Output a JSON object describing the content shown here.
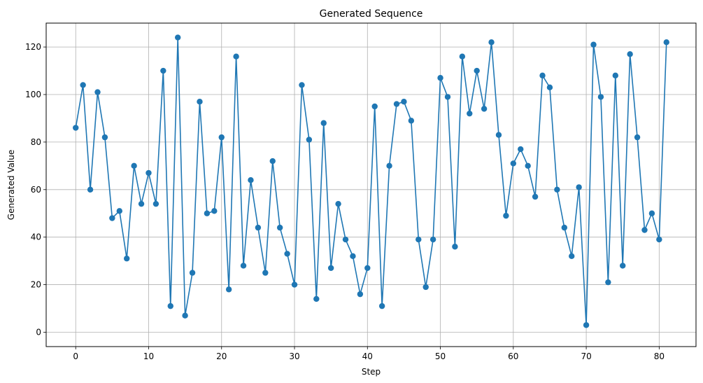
{
  "chart_data": {
    "type": "line",
    "title": "Generated Sequence",
    "xlabel": "Step",
    "ylabel": "Generated Value",
    "xlim": [
      -4.05,
      85.05
    ],
    "ylim": [
      -6.05,
      130.05
    ],
    "xticks": [
      0,
      10,
      20,
      30,
      40,
      50,
      60,
      70,
      80
    ],
    "yticks": [
      0,
      20,
      40,
      60,
      80,
      100,
      120
    ],
    "grid": true,
    "marker": "circle",
    "color": "#1f77b4",
    "series": [
      {
        "x": [
          0,
          1,
          2,
          3,
          4,
          5,
          6,
          7,
          8,
          9,
          10,
          11,
          12,
          13,
          14,
          15,
          16,
          17,
          18,
          19,
          20,
          21,
          22,
          23,
          24,
          25,
          26,
          27,
          28,
          29,
          30,
          31,
          32,
          33,
          34,
          35,
          36,
          37,
          38,
          39,
          40,
          41,
          42,
          43,
          44,
          45,
          46,
          47,
          48,
          49,
          50,
          51,
          52,
          53,
          54,
          55,
          56,
          57,
          58,
          59,
          60,
          61,
          62,
          63,
          64,
          65,
          66,
          67,
          68,
          69,
          70,
          71,
          72,
          73,
          74,
          75,
          76,
          77,
          78,
          79,
          80,
          81
        ],
        "values": [
          86,
          104,
          60,
          101,
          82,
          48,
          51,
          31,
          70,
          54,
          67,
          54,
          110,
          11,
          124,
          7,
          25,
          97,
          50,
          51,
          82,
          18,
          116,
          28,
          64,
          44,
          25,
          72,
          44,
          33,
          20,
          104,
          81,
          14,
          88,
          27,
          54,
          39,
          32,
          16,
          27,
          95,
          11,
          70,
          96,
          97,
          89,
          39,
          19,
          39,
          107,
          99,
          36,
          116,
          92,
          110,
          94,
          122,
          83,
          49,
          71,
          77,
          70,
          57,
          108,
          103,
          60,
          44,
          32,
          61,
          3,
          121,
          99,
          21,
          108,
          28,
          117,
          82,
          43,
          50,
          39,
          122
        ]
      }
    ]
  }
}
